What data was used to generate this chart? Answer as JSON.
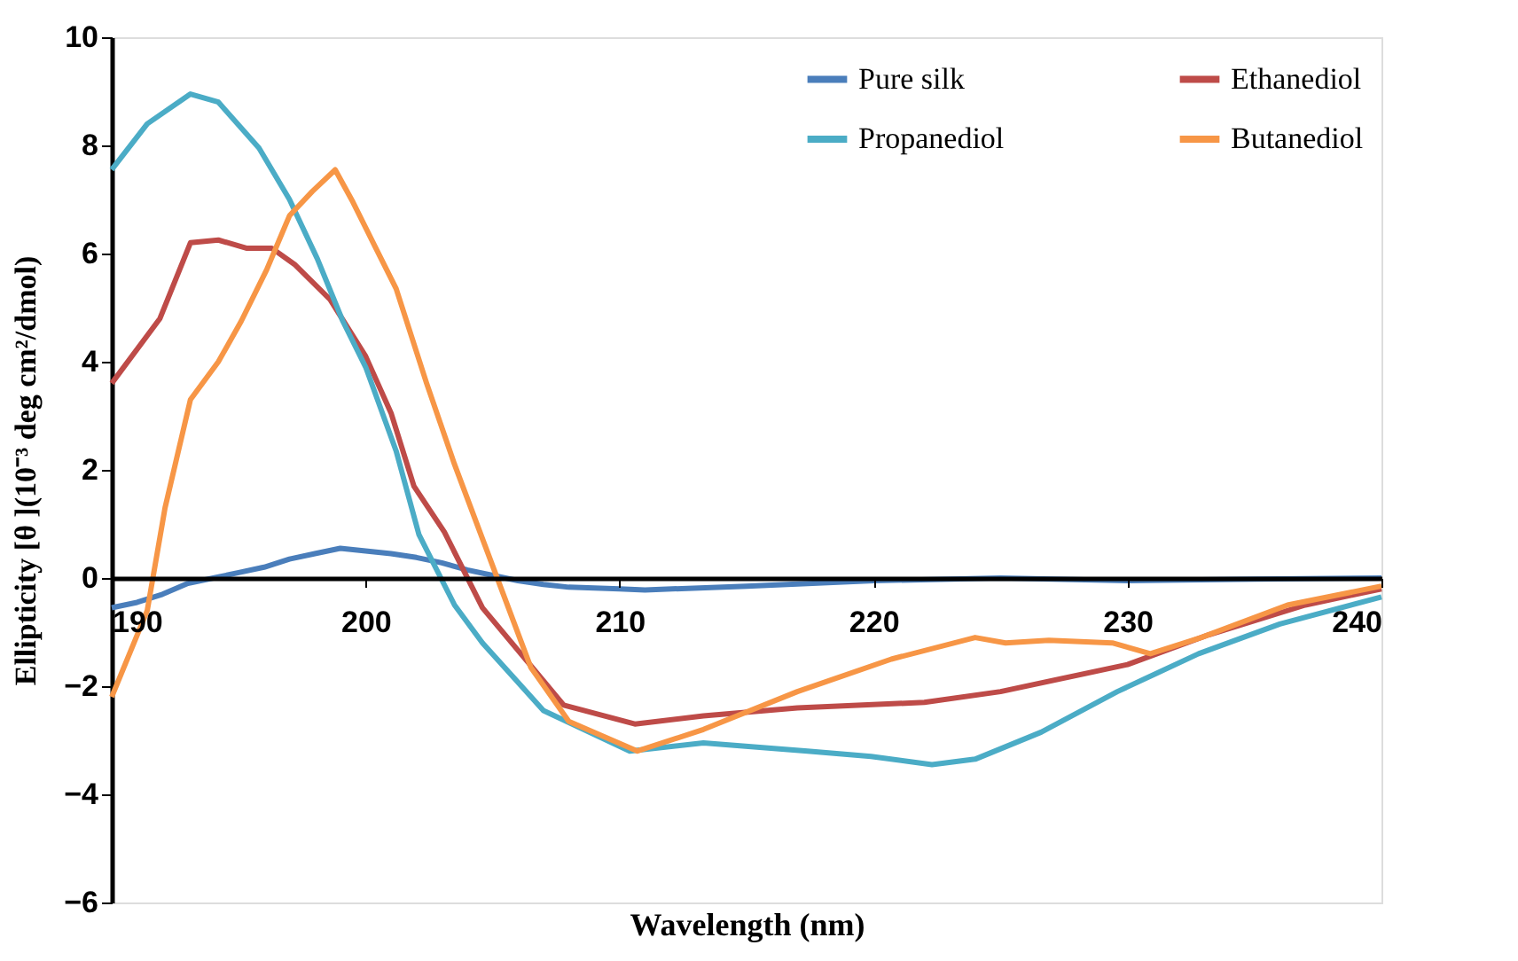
{
  "chart_data": {
    "type": "line",
    "xlabel": "Wavelength (nm)",
    "ylabel": "Ellipticity  [θ ](10⁻³ deg cm²/dmol)",
    "xlim": [
      190,
      240
    ],
    "xticks": [
      190,
      200,
      210,
      220,
      230,
      240
    ],
    "ylim": [
      -6,
      10
    ],
    "yticks": [
      -6,
      -4,
      -2,
      0,
      2,
      4,
      6,
      8,
      10
    ],
    "grid": false,
    "legend": "top right",
    "marker": "none",
    "line_style": "solid",
    "series": [
      {
        "name": "Pure silk",
        "color": "#4a7ebb",
        "x": [
          190,
          191,
          192,
          193,
          194,
          195,
          196,
          197,
          198,
          199,
          200,
          201,
          202,
          203,
          204,
          205,
          206,
          207,
          208,
          210,
          211,
          215,
          220,
          225,
          230,
          235,
          240
        ],
        "values": [
          -0.55,
          -0.45,
          -0.3,
          -0.1,
          0.0,
          0.1,
          0.2,
          0.35,
          0.45,
          0.55,
          0.5,
          0.45,
          0.38,
          0.28,
          0.15,
          0.05,
          -0.05,
          -0.12,
          -0.17,
          -0.2,
          -0.22,
          -0.15,
          -0.05,
          0.0,
          -0.05,
          -0.02,
          0.0
        ]
      },
      {
        "name": "Ethanediol",
        "color": "#be4b48",
        "x": [
          190,
          191.9,
          193.1,
          194.2,
          195.3,
          196.3,
          197.2,
          198.6,
          200,
          201,
          201.9,
          203.1,
          204.6,
          207.8,
          210.6,
          213.3,
          217,
          222,
          225,
          230,
          233.2,
          237,
          240
        ],
        "values": [
          3.6,
          4.8,
          6.2,
          6.25,
          6.1,
          6.1,
          5.8,
          5.15,
          4.1,
          3.05,
          1.7,
          0.85,
          -0.55,
          -2.35,
          -2.7,
          -2.55,
          -2.4,
          -2.3,
          -2.1,
          -1.6,
          -1.05,
          -0.5,
          -0.2
        ]
      },
      {
        "name": "Propanediol",
        "color": "#4bacc6",
        "x": [
          190,
          191.4,
          193.1,
          194.2,
          195.8,
          197,
          198.1,
          199.1,
          200,
          201.2,
          202.1,
          203.5,
          204.6,
          207,
          210.4,
          213.3,
          217.4,
          219.9,
          222.3,
          224,
          226.6,
          229.6,
          232.8,
          236,
          240
        ],
        "values": [
          7.55,
          8.4,
          8.95,
          8.8,
          7.95,
          7.0,
          5.9,
          4.75,
          3.9,
          2.35,
          0.8,
          -0.5,
          -1.2,
          -2.45,
          -3.2,
          -3.05,
          -3.2,
          -3.3,
          -3.45,
          -3.35,
          -2.85,
          -2.1,
          -1.4,
          -0.85,
          -0.35
        ]
      },
      {
        "name": "Butanediol",
        "color": "#f79646",
        "x": [
          190,
          191.4,
          192.1,
          193.1,
          194.2,
          195.1,
          196.1,
          197,
          197.9,
          198.8,
          199.5,
          200.4,
          201.2,
          202.4,
          203.5,
          204.7,
          206.5,
          208,
          210.7,
          213.3,
          217,
          220.7,
          224,
          225.2,
          226.9,
          229.4,
          230.9,
          232.9,
          236.3,
          240
        ],
        "values": [
          -2.2,
          -0.6,
          1.3,
          3.3,
          4.0,
          4.75,
          5.7,
          6.7,
          7.15,
          7.55,
          6.95,
          6.1,
          5.35,
          3.6,
          2.1,
          0.6,
          -1.65,
          -2.65,
          -3.2,
          -2.8,
          -2.1,
          -1.5,
          -1.1,
          -1.2,
          -1.15,
          -1.2,
          -1.4,
          -1.1,
          -0.5,
          -0.15
        ]
      }
    ]
  }
}
